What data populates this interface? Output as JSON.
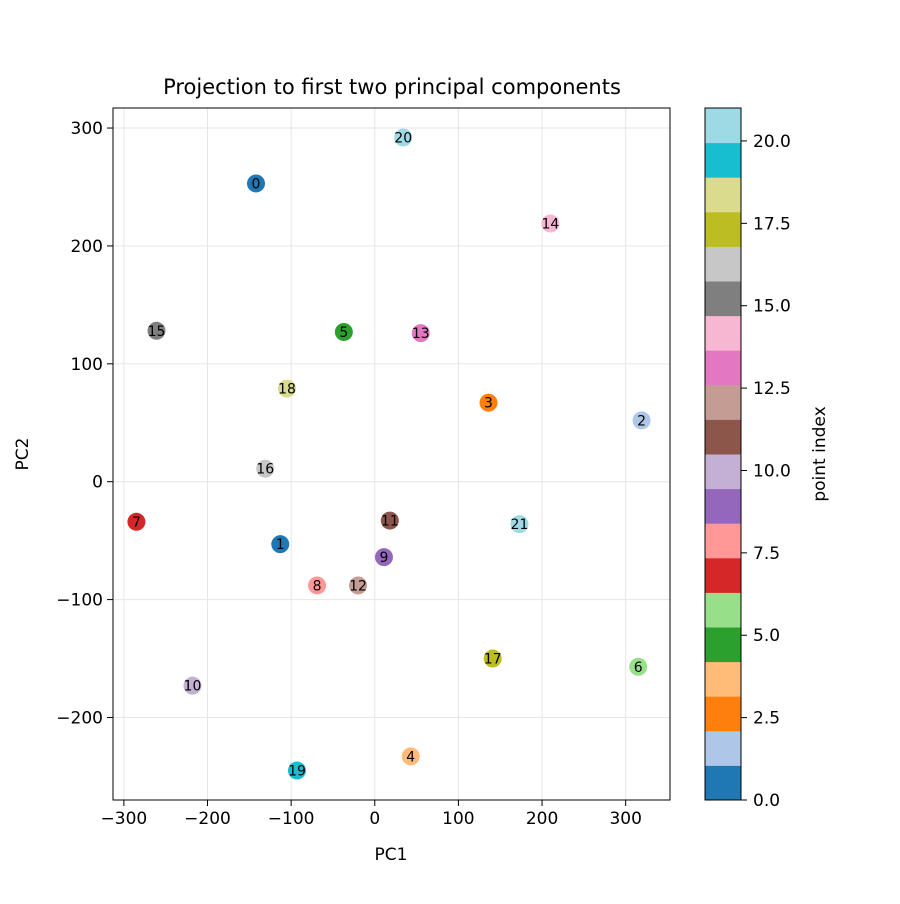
{
  "chart_data": {
    "type": "scatter",
    "title": "Projection to first two principal components",
    "xlabel": "PC1",
    "ylabel": "PC2",
    "xlim": [
      -313,
      353
    ],
    "ylim": [
      -270,
      317
    ],
    "xticks": [
      -300,
      -200,
      -100,
      0,
      100,
      200,
      300
    ],
    "yticks": [
      -200,
      -100,
      0,
      100,
      200,
      300
    ],
    "grid": true,
    "points": [
      {
        "label": "0",
        "x": -142,
        "y": 253
      },
      {
        "label": "1",
        "x": -113,
        "y": -53
      },
      {
        "label": "2",
        "x": 319,
        "y": 52
      },
      {
        "label": "3",
        "x": 136,
        "y": 67
      },
      {
        "label": "4",
        "x": 43,
        "y": -233
      },
      {
        "label": "5",
        "x": -37,
        "y": 127
      },
      {
        "label": "6",
        "x": 315,
        "y": -157
      },
      {
        "label": "7",
        "x": -285,
        "y": -34
      },
      {
        "label": "8",
        "x": -69,
        "y": -88
      },
      {
        "label": "9",
        "x": 11,
        "y": -64
      },
      {
        "label": "10",
        "x": -218,
        "y": -173
      },
      {
        "label": "11",
        "x": 18,
        "y": -33
      },
      {
        "label": "12",
        "x": -20,
        "y": -88
      },
      {
        "label": "13",
        "x": 55,
        "y": 126
      },
      {
        "label": "14",
        "x": 210,
        "y": 219
      },
      {
        "label": "15",
        "x": -261,
        "y": 128
      },
      {
        "label": "16",
        "x": -131,
        "y": 11
      },
      {
        "label": "17",
        "x": 141,
        "y": -150
      },
      {
        "label": "18",
        "x": -105,
        "y": 79
      },
      {
        "label": "19",
        "x": -93,
        "y": -245
      },
      {
        "label": "20",
        "x": 34,
        "y": 292
      },
      {
        "label": "21",
        "x": 173,
        "y": -36
      }
    ],
    "colorbar": {
      "label": "point index",
      "range": [
        0,
        21
      ],
      "ticks": [
        0.0,
        2.5,
        5.0,
        7.5,
        10.0,
        12.5,
        15.0,
        17.5,
        20.0
      ],
      "tick_labels": [
        "0.0",
        "2.5",
        "5.0",
        "7.5",
        "10.0",
        "12.5",
        "15.0",
        "17.5",
        "20.0"
      ],
      "colormap": "tab20",
      "colors": [
        "#1f77b4",
        "#aec7e8",
        "#ff7f0e",
        "#ffbb78",
        "#2ca02c",
        "#98df8a",
        "#d62728",
        "#ff9896",
        "#9467bd",
        "#c5b0d5",
        "#8c564b",
        "#c49c94",
        "#e377c2",
        "#f7b6d2",
        "#7f7f7f",
        "#c7c7c7",
        "#bcbd22",
        "#dbdb8d",
        "#17becf",
        "#9edae5"
      ]
    }
  }
}
